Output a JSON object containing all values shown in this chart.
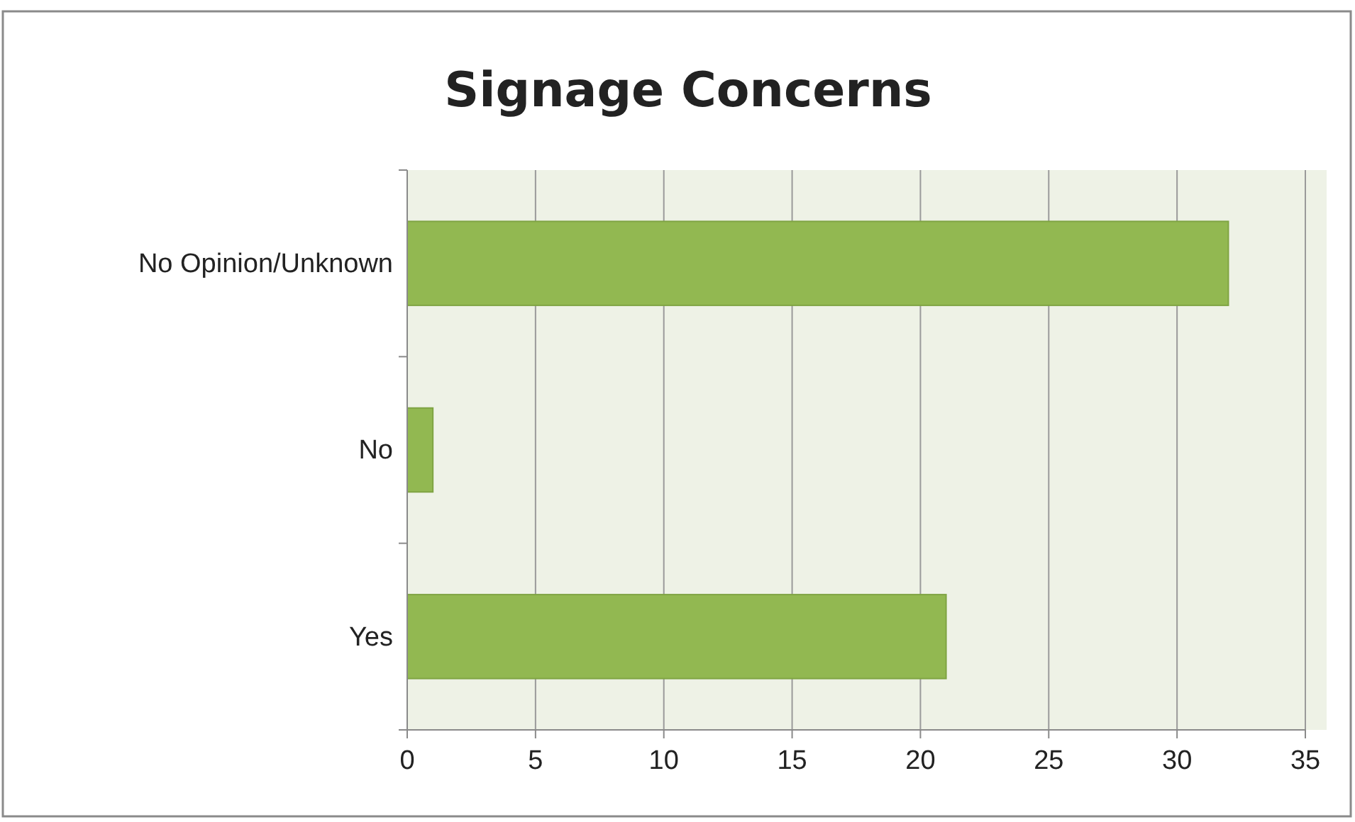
{
  "chart_data": {
    "type": "bar",
    "orientation": "horizontal",
    "title": "Signage Concerns",
    "categories": [
      "No Opinion/Unknown",
      "No",
      "Yes"
    ],
    "values": [
      32,
      1,
      21
    ],
    "color": "#92b851",
    "xlim": [
      0,
      35
    ],
    "xticks": [
      0,
      5,
      10,
      15,
      20,
      25,
      30,
      35
    ],
    "grid": "x"
  }
}
